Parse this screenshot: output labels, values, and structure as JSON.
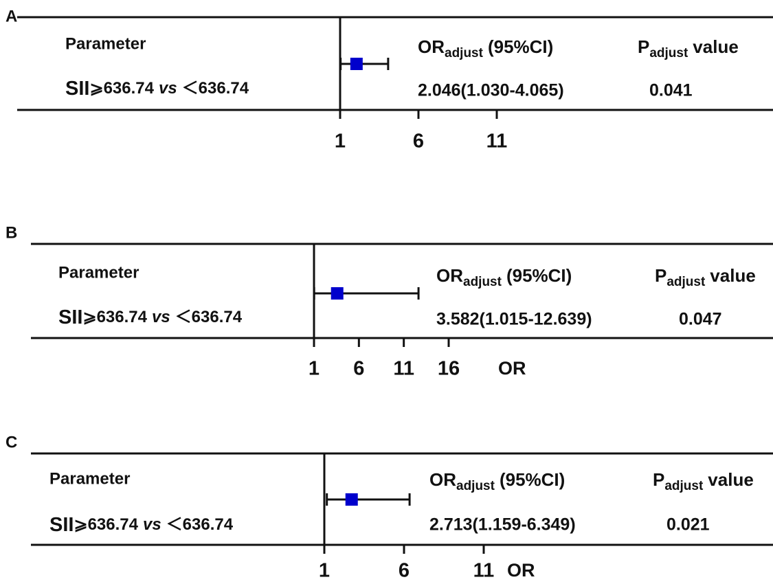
{
  "chart_data": [
    {
      "type": "forest",
      "panel": "A",
      "param_header": "Parameter",
      "or_header": [
        "OR",
        "adjust",
        "(95%CI)"
      ],
      "p_header": [
        "P",
        "adjust",
        "value"
      ],
      "row_label": [
        "SII",
        "⩾636.74",
        "vs",
        "＜636.74"
      ],
      "or": 2.046,
      "ci_low": 1.03,
      "ci_high": 4.065,
      "value_label": "2.046(1.030-4.065)",
      "p_value": "0.041",
      "color": "#0000cc",
      "xlim": [
        1,
        11
      ],
      "xticks": [
        1,
        6,
        11
      ]
    },
    {
      "type": "forest",
      "panel": "B",
      "param_header": "Parameter",
      "or_header": [
        "OR",
        "adjust",
        "(95%CI)"
      ],
      "p_header": [
        "P",
        "adjust",
        "value"
      ],
      "row_label": [
        "SII",
        "⩾636.74",
        "vs",
        "＜636.74"
      ],
      "or": 3.582,
      "ci_low": 1.015,
      "ci_high": 12.639,
      "value_label": "3.582(1.015-12.639)",
      "p_value": "0.047",
      "color": "#0000cc",
      "xlim": [
        1,
        16
      ],
      "xticks": [
        1,
        6,
        11,
        16
      ],
      "xlabel": "OR"
    },
    {
      "type": "forest",
      "panel": "C",
      "param_header": "Parameter",
      "or_header": [
        "OR",
        "adjust",
        "(95%CI)"
      ],
      "p_header": [
        "P",
        "adjust",
        "value"
      ],
      "row_label": [
        "SII",
        "⩾636.74",
        "vs",
        "＜636.74"
      ],
      "or": 2.713,
      "ci_low": 1.159,
      "ci_high": 6.349,
      "value_label": "2.713(1.159-6.349)",
      "p_value": "0.021",
      "color": "#0000cc",
      "xlim": [
        1,
        11
      ],
      "xticks": [
        1,
        6,
        11
      ],
      "xlabel": "OR"
    }
  ]
}
